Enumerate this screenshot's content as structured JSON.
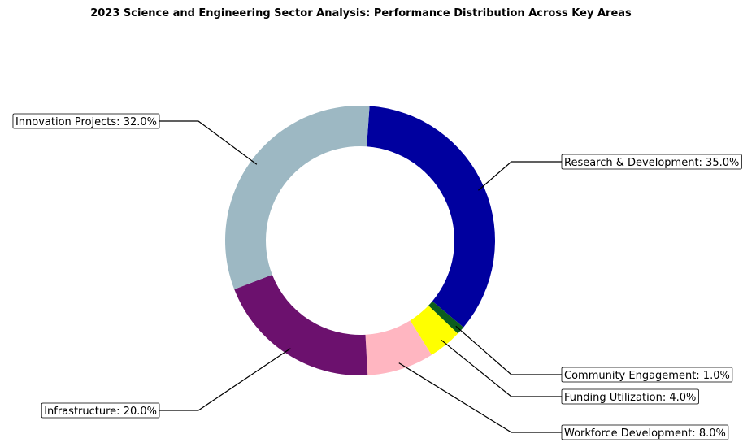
{
  "chart_data": {
    "type": "pie",
    "title": "2023 Science and Engineering Sector Analysis: Performance Distribution Across Key Areas",
    "donut": true,
    "slices": [
      {
        "label": "Research & Development",
        "value": 35.0,
        "text": "Research & Development: 35.0%",
        "color": "#00009F"
      },
      {
        "label": "Community Engagement",
        "value": 1.0,
        "text": "Community Engagement: 1.0%",
        "color": "#0B5D1E"
      },
      {
        "label": "Funding Utilization",
        "value": 4.0,
        "text": "Funding Utilization: 4.0%",
        "color": "#FFFF00"
      },
      {
        "label": "Workforce Development",
        "value": 8.0,
        "text": "Workforce Development: 8.0%",
        "color": "#FFB6C1"
      },
      {
        "label": "Infrastructure",
        "value": 20.0,
        "text": "Infrastructure: 20.0%",
        "color": "#6C116E"
      },
      {
        "label": "Innovation Projects",
        "value": 32.0,
        "text": "Innovation Projects: 32.0%",
        "color": "#9DB8C3"
      }
    ],
    "legend": "none"
  }
}
